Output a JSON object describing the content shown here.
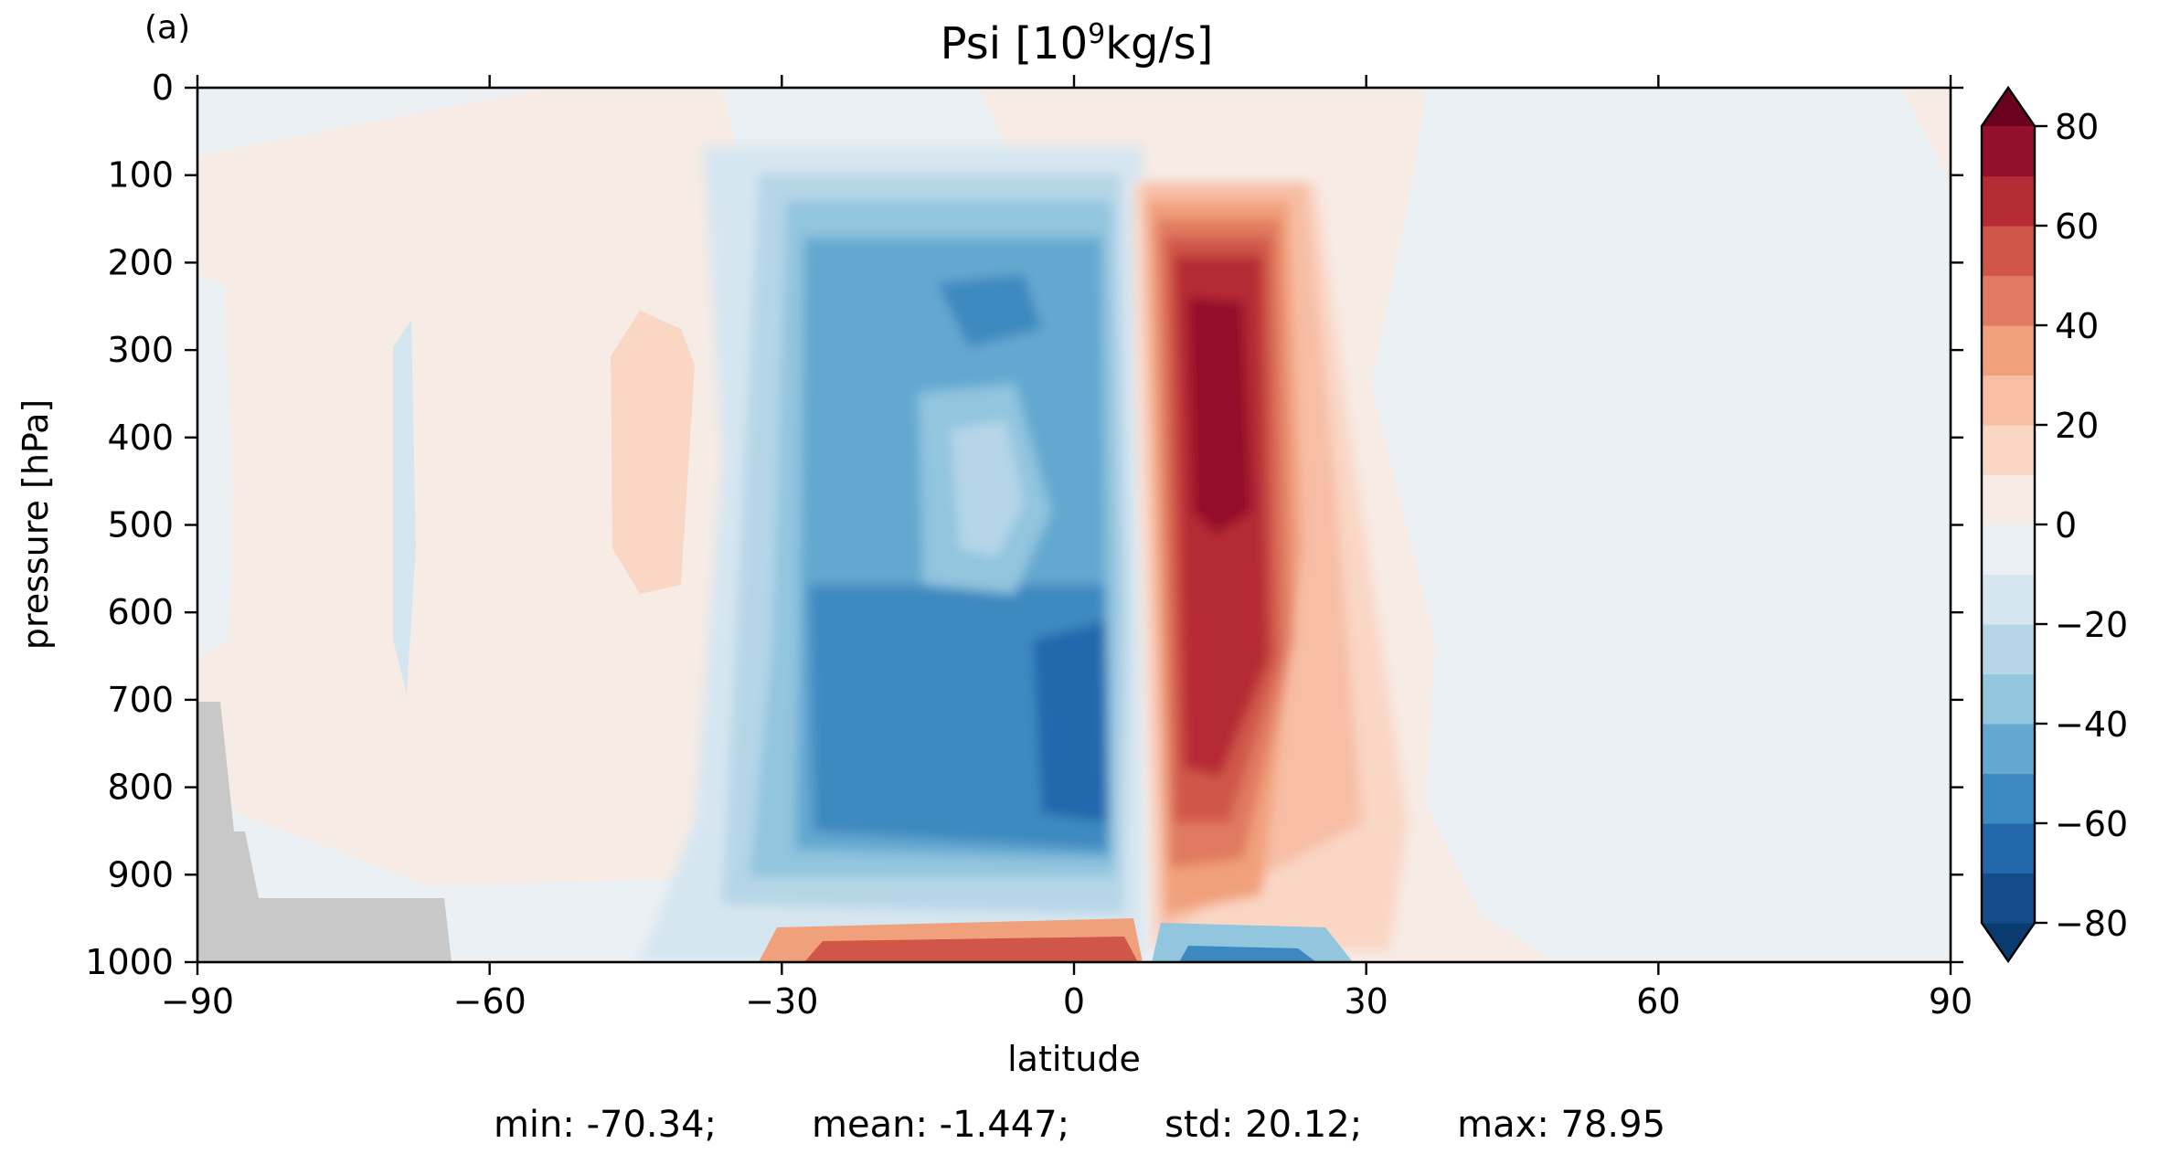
{
  "panel_label": "(a)",
  "chart_data": {
    "type": "heatmap",
    "title_prefix": "Psi [10",
    "title_sup": "9",
    "title_suffix": "kg/s]",
    "xlabel": "latitude",
    "ylabel": "pressure [hPa]",
    "xlim": [
      -90,
      90
    ],
    "ylim": [
      1000,
      0
    ],
    "x_ticks": [
      "−90",
      "−60",
      "−30",
      "0",
      "30",
      "60",
      "90"
    ],
    "x_tick_values": [
      -90,
      -60,
      -30,
      0,
      30,
      60,
      90
    ],
    "y_ticks": [
      "0",
      "100",
      "200",
      "300",
      "400",
      "500",
      "600",
      "700",
      "800",
      "900",
      "1000"
    ],
    "y_tick_values": [
      0,
      100,
      200,
      300,
      400,
      500,
      600,
      700,
      800,
      900,
      1000
    ],
    "colorbar": {
      "ticks": [
        "−80",
        "−60",
        "−40",
        "−20",
        "0",
        "20",
        "40",
        "60",
        "80"
      ],
      "tick_values": [
        -80,
        -60,
        -40,
        -20,
        0,
        20,
        40,
        60,
        80
      ],
      "levels": [
        -80,
        -70,
        -60,
        -50,
        -40,
        -30,
        -20,
        -10,
        0,
        10,
        20,
        30,
        40,
        50,
        60,
        70,
        80
      ],
      "extend": "both",
      "cmap": "RdBu_r",
      "colors": [
        "#0a3b70",
        "#134c88",
        "#2267ac",
        "#3c89c0",
        "#64a8d0",
        "#92c5de",
        "#b6d6e8",
        "#d6e6f0",
        "#eaf0f4",
        "#f7ebe5",
        "#fad6c5",
        "#f7bea5",
        "#f1a07c",
        "#e07a60",
        "#d05649",
        "#b62a34",
        "#940f2c",
        "#6a011f"
      ]
    },
    "features": [
      {
        "name": "southern Hadley cell (negative)",
        "lat_range": [
          -30,
          8
        ],
        "pressure_range": [
          100,
          1000
        ],
        "extreme": -70.34
      },
      {
        "name": "northern Hadley cell (positive)",
        "lat_range": [
          8,
          35
        ],
        "pressure_range": [
          100,
          950
        ],
        "extreme": 78.95
      },
      {
        "name": "below-ground (masked)",
        "lat_range": [
          -90,
          -64
        ],
        "color": "#c8c8c8"
      }
    ],
    "stats": {
      "min": "-70.34",
      "mean": "-1.447",
      "std": "20.12",
      "max": "78.95"
    }
  },
  "stats_text": {
    "min": "min: -70.34;",
    "mean": "mean: -1.447;",
    "std": "std: 20.12;",
    "max": "max: 78.95"
  }
}
